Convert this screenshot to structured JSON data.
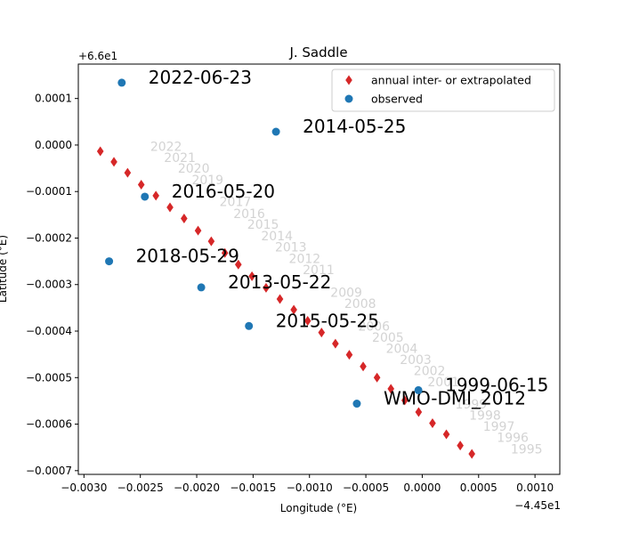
{
  "chart_data": {
    "type": "scatter",
    "title": "J. Saddle",
    "xlabel": "Longitude (°E)",
    "ylabel": "Latitude (°E)",
    "x_offset_label": "−4.45e1",
    "y_offset_label": "+6.6e1",
    "xlim": [
      -0.00305,
      0.00122
    ],
    "ylim": [
      -0.000708,
      0.000174
    ],
    "x_ticks": [
      {
        "value": -0.003,
        "label": "−0.0030"
      },
      {
        "value": -0.0025,
        "label": "−0.0025"
      },
      {
        "value": -0.002,
        "label": "−0.0020"
      },
      {
        "value": -0.0015,
        "label": "−0.0015"
      },
      {
        "value": -0.001,
        "label": "−0.0010"
      },
      {
        "value": -0.0005,
        "label": "−0.0005"
      },
      {
        "value": 0.0,
        "label": "0.0000"
      },
      {
        "value": 0.0005,
        "label": "0.0005"
      },
      {
        "value": 0.001,
        "label": "0.0010"
      }
    ],
    "y_ticks": [
      {
        "value": 0.0001,
        "label": "0.0001"
      },
      {
        "value": 0.0,
        "label": "0.0000"
      },
      {
        "value": -0.0001,
        "label": "−0.0001"
      },
      {
        "value": -0.0002,
        "label": "−0.0002"
      },
      {
        "value": -0.0003,
        "label": "−0.0003"
      },
      {
        "value": -0.0004,
        "label": "−0.0004"
      },
      {
        "value": -0.0005,
        "label": "−0.0005"
      },
      {
        "value": -0.0006,
        "label": "−0.0006"
      },
      {
        "value": -0.0007,
        "label": "−0.0007"
      }
    ],
    "legend": {
      "placement": "top-right",
      "entries": [
        {
          "label": "annual inter- or extrapolated",
          "marker": "diamond",
          "color": "#d62728"
        },
        {
          "label": "observed",
          "marker": "circle",
          "color": "#1f77b4"
        }
      ]
    },
    "series": [
      {
        "name": "annual inter- or extrapolated",
        "marker": "diamond",
        "color": "#d62728",
        "points": [
          {
            "x": -0.002855,
            "y": -1.36e-05
          },
          {
            "x": -0.002734,
            "y": -3.62e-05
          },
          {
            "x": -0.002613,
            "y": -5.97e-05
          },
          {
            "x": -0.002492,
            "y": -8.53e-05
          },
          {
            "x": -0.002362,
            "y": -0.000109
          },
          {
            "x": -0.002237,
            "y": -0.000134
          },
          {
            "x": -0.002112,
            "y": -0.000158
          },
          {
            "x": -0.001988,
            "y": -0.000184
          },
          {
            "x": -0.001871,
            "y": -0.000207
          },
          {
            "x": -0.00175,
            "y": -0.000232
          },
          {
            "x": -0.001631,
            "y": -0.000257
          },
          {
            "x": -0.00151,
            "y": -0.000282
          },
          {
            "x": -0.001385,
            "y": -0.000307
          },
          {
            "x": -0.001262,
            "y": -0.000331
          },
          {
            "x": -0.001139,
            "y": -0.000354
          },
          {
            "x": -0.001016,
            "y": -0.000378
          },
          {
            "x": -0.000893,
            "y": -0.000403
          },
          {
            "x": -0.00077,
            "y": -0.000427
          },
          {
            "x": -0.000647,
            "y": -0.000451
          },
          {
            "x": -0.000524,
            "y": -0.000476
          },
          {
            "x": -0.000401,
            "y": -0.0005
          },
          {
            "x": -0.000278,
            "y": -0.000524
          },
          {
            "x": -0.000155,
            "y": -0.000549
          },
          {
            "x": -3.2e-05,
            "y": -0.000574
          },
          {
            "x": 9.1e-05,
            "y": -0.000598
          },
          {
            "x": 0.000214,
            "y": -0.000622
          },
          {
            "x": 0.000337,
            "y": -0.000646
          },
          {
            "x": 0.00044,
            "y": -0.000664
          }
        ]
      },
      {
        "name": "observed",
        "marker": "circle",
        "color": "#1f77b4",
        "points": [
          {
            "x": -0.002665,
            "y": 0.000134,
            "label": "2022-06-23"
          },
          {
            "x": -0.001297,
            "y": 2.86e-05,
            "label": "2014-05-25"
          },
          {
            "x": -0.00246,
            "y": -0.000111,
            "label": "2016-05-20"
          },
          {
            "x": -0.002777,
            "y": -0.00025,
            "label": "2018-05-29"
          },
          {
            "x": -0.00196,
            "y": -0.000306,
            "label": "2013-05-22"
          },
          {
            "x": -0.001537,
            "y": -0.000389,
            "label": "2015-05-25"
          },
          {
            "x": -0.00058,
            "y": -0.000556,
            "label": "WMO-DMI_2012"
          },
          {
            "x": -3.4e-05,
            "y": -0.000527,
            "label": "1999-06-15"
          }
        ]
      }
    ],
    "year_labels": [
      {
        "text": "2022",
        "x": -0.002412,
        "y": -2.7e-06
      },
      {
        "text": "2021",
        "x": -0.00229,
        "y": -2.67e-05
      },
      {
        "text": "2020",
        "x": -0.002167,
        "y": -5.03e-05
      },
      {
        "text": "2019",
        "x": -0.002044,
        "y": -7.44e-05
      },
      {
        "text": "2017",
        "x": -0.001798,
        "y": -0.000122
      },
      {
        "text": "2016",
        "x": -0.001675,
        "y": -0.000147
      },
      {
        "text": "2015",
        "x": -0.001552,
        "y": -0.00017
      },
      {
        "text": "2014",
        "x": -0.001429,
        "y": -0.000195
      },
      {
        "text": "2013",
        "x": -0.001306,
        "y": -0.000219
      },
      {
        "text": "2012",
        "x": -0.001183,
        "y": -0.000244
      },
      {
        "text": "2011",
        "x": -0.00106,
        "y": -0.000268
      },
      {
        "text": "2009",
        "x": -0.000814,
        "y": -0.000317
      },
      {
        "text": "2008",
        "x": -0.000691,
        "y": -0.000341
      },
      {
        "text": "2006",
        "x": -0.000568,
        "y": -0.000389
      },
      {
        "text": "2005",
        "x": -0.000445,
        "y": -0.000413
      },
      {
        "text": "2004",
        "x": -0.000322,
        "y": -0.000437
      },
      {
        "text": "2003",
        "x": -0.000199,
        "y": -0.000461
      },
      {
        "text": "2002",
        "x": -7.6e-05,
        "y": -0.000485
      },
      {
        "text": "2001",
        "x": 4.7e-05,
        "y": -0.000509
      },
      {
        "text": "1999",
        "x": 0.000293,
        "y": -0.000557
      },
      {
        "text": "1998",
        "x": 0.000416,
        "y": -0.000581
      },
      {
        "text": "1997",
        "x": 0.000539,
        "y": -0.000605
      },
      {
        "text": "1996",
        "x": 0.000662,
        "y": -0.000629
      },
      {
        "text": "1995",
        "x": 0.000785,
        "y": -0.000653
      }
    ]
  }
}
